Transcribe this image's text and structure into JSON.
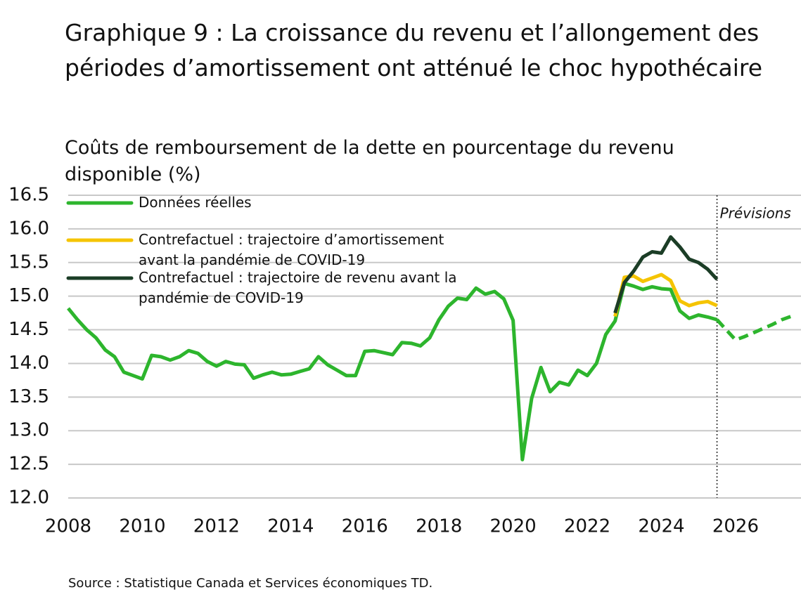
{
  "chart_data": {
    "type": "line",
    "title": "Graphique 9 : La croissance du revenu et l’allongement des périodes d’amortissement ont atténué le choc hypothécaire",
    "subtitle": "Coûts de remboursement de la dette en pourcentage du revenu disponible (%)",
    "source": "Source : Statistique Canada et Services économiques TD.",
    "forecast_label": "Prévisions",
    "forecast_start": 2025.5,
    "x": [
      2008,
      2008.25,
      2008.5,
      2008.75,
      2009,
      2009.25,
      2009.5,
      2009.75,
      2010,
      2010.25,
      2010.5,
      2010.75,
      2011,
      2011.25,
      2011.5,
      2011.75,
      2012,
      2012.25,
      2012.5,
      2012.75,
      2013,
      2013.25,
      2013.5,
      2013.75,
      2014,
      2014.25,
      2014.5,
      2014.75,
      2015,
      2015.25,
      2015.5,
      2015.75,
      2016,
      2016.25,
      2016.5,
      2016.75,
      2017,
      2017.25,
      2017.5,
      2017.75,
      2018,
      2018.25,
      2018.5,
      2018.75,
      2019,
      2019.25,
      2019.5,
      2019.75,
      2020,
      2020.25,
      2020.5,
      2020.75,
      2021,
      2021.25,
      2021.5,
      2021.75,
      2022,
      2022.25,
      2022.5,
      2022.75,
      2023,
      2023.25,
      2023.5,
      2023.75,
      2024,
      2024.25,
      2024.5,
      2024.75,
      2025,
      2025.25,
      2025.5,
      2025.75,
      2026,
      2026.25,
      2026.5,
      2026.75,
      2027,
      2027.25,
      2027.5
    ],
    "series": [
      {
        "name": "Données réelles",
        "color": "#2db52d",
        "dashed": false,
        "values": [
          14.82,
          14.65,
          14.5,
          14.38,
          14.2,
          14.1,
          13.87,
          13.82,
          13.77,
          14.12,
          14.1,
          14.05,
          14.1,
          14.19,
          14.15,
          14.03,
          13.96,
          14.03,
          13.99,
          13.98,
          13.78,
          13.83,
          13.87,
          13.83,
          13.84,
          13.88,
          13.92,
          14.1,
          13.98,
          13.9,
          13.82,
          13.82,
          14.18,
          14.19,
          14.16,
          14.13,
          14.31,
          14.3,
          14.26,
          14.38,
          14.65,
          14.85,
          14.97,
          14.95,
          15.12,
          15.03,
          15.07,
          14.96,
          14.64,
          12.57,
          13.48,
          13.94,
          13.58,
          13.72,
          13.68,
          13.9,
          13.82,
          14.0,
          14.43,
          14.63,
          15.19,
          15.15,
          15.1,
          15.14,
          15.11,
          15.1,
          14.78,
          14.67,
          14.72,
          14.69,
          14.65,
          null,
          null,
          null,
          null,
          null,
          null,
          null,
          null
        ]
      },
      {
        "name": "Contrefactuel : trajectoire d’amortissement avant la pandémie de COVID-19",
        "color": "#f5c400",
        "dashed": false,
        "values": [
          null,
          null,
          null,
          null,
          null,
          null,
          null,
          null,
          null,
          null,
          null,
          null,
          null,
          null,
          null,
          null,
          null,
          null,
          null,
          null,
          null,
          null,
          null,
          null,
          null,
          null,
          null,
          null,
          null,
          null,
          null,
          null,
          null,
          null,
          null,
          null,
          null,
          null,
          null,
          null,
          null,
          null,
          null,
          null,
          null,
          null,
          null,
          null,
          null,
          null,
          null,
          null,
          null,
          null,
          null,
          null,
          null,
          null,
          null,
          14.7,
          15.28,
          15.3,
          15.22,
          15.27,
          15.32,
          15.23,
          14.93,
          14.86,
          14.9,
          14.92,
          14.86,
          null,
          null,
          null,
          null,
          null,
          null,
          null,
          null
        ]
      },
      {
        "name": "Contrefactuel : trajectoire de revenu avant la pandémie de COVID-19",
        "color": "#1b3d26",
        "dashed": false,
        "values": [
          null,
          null,
          null,
          null,
          null,
          null,
          null,
          null,
          null,
          null,
          null,
          null,
          null,
          null,
          null,
          null,
          null,
          null,
          null,
          null,
          null,
          null,
          null,
          null,
          null,
          null,
          null,
          null,
          null,
          null,
          null,
          null,
          null,
          null,
          null,
          null,
          null,
          null,
          null,
          null,
          null,
          null,
          null,
          null,
          null,
          null,
          null,
          null,
          null,
          null,
          null,
          null,
          null,
          null,
          null,
          null,
          null,
          null,
          null,
          14.75,
          15.2,
          15.37,
          15.58,
          15.66,
          15.64,
          15.88,
          15.73,
          15.55,
          15.5,
          15.4,
          15.25,
          null,
          null,
          null,
          null,
          null,
          null,
          null,
          null
        ]
      },
      {
        "color": "#2db52d",
        "dashed": true,
        "values": [
          null,
          null,
          null,
          null,
          null,
          null,
          null,
          null,
          null,
          null,
          null,
          null,
          null,
          null,
          null,
          null,
          null,
          null,
          null,
          null,
          null,
          null,
          null,
          null,
          null,
          null,
          null,
          null,
          null,
          null,
          null,
          null,
          null,
          null,
          null,
          null,
          null,
          null,
          null,
          null,
          null,
          null,
          null,
          null,
          null,
          null,
          null,
          null,
          null,
          null,
          null,
          null,
          null,
          null,
          null,
          null,
          null,
          null,
          null,
          null,
          null,
          null,
          null,
          null,
          null,
          null,
          null,
          null,
          null,
          null,
          14.65,
          14.5,
          14.35,
          14.4,
          14.46,
          14.52,
          14.58,
          14.65,
          14.7
        ]
      }
    ],
    "xlim": [
      2008,
      2027.5
    ],
    "xticks": [
      2008,
      2010,
      2012,
      2014,
      2016,
      2018,
      2020,
      2022,
      2024,
      2026
    ],
    "ylim": [
      12,
      16.5
    ],
    "yticks": [
      {
        "value": 12,
        "label": "12.0"
      },
      12.5,
      {
        "value": 13,
        "label": "13.0"
      },
      13.5,
      {
        "value": 14,
        "label": "14.0"
      },
      14.5,
      {
        "value": 15,
        "label": "15.0"
      },
      15.5,
      {
        "value": 16,
        "label": "16.0"
      },
      16.5
    ],
    "grid": true
  }
}
